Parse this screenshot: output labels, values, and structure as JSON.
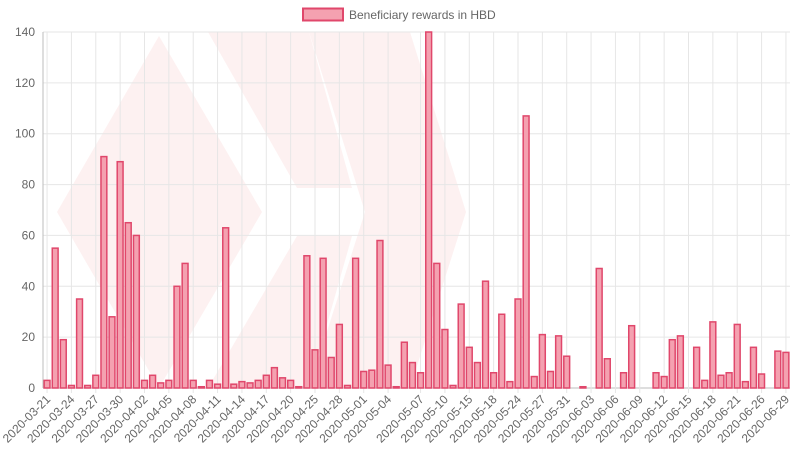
{
  "chart_data": {
    "type": "bar",
    "legend": {
      "label": "Beneficiary rewards in HBD",
      "position": "top"
    },
    "colors": {
      "bar_fill": "#f4a1b0",
      "bar_stroke": "#e0476b",
      "grid": "#e6e6e6",
      "axis": "#bdbdbd",
      "watermark": "#fdeeee"
    },
    "ylim": [
      0,
      140
    ],
    "yticks": [
      0,
      20,
      40,
      60,
      80,
      100,
      120,
      140
    ],
    "x_tick_labels": [
      "2020-03-21",
      "2020-03-24",
      "2020-03-27",
      "2020-03-30",
      "2020-04-02",
      "2020-04-05",
      "2020-04-08",
      "2020-04-11",
      "2020-04-14",
      "2020-04-17",
      "2020-04-20",
      "2020-04-25",
      "2020-04-28",
      "2020-05-01",
      "2020-05-04",
      "2020-05-07",
      "2020-05-10",
      "2020-05-15",
      "2020-05-18",
      "2020-05-24",
      "2020-05-27",
      "2020-05-31",
      "2020-06-03",
      "2020-06-06",
      "2020-06-09",
      "2020-06-12",
      "2020-06-15",
      "2020-06-18",
      "2020-06-21",
      "2020-06-26",
      "2020-06-29"
    ],
    "values": [
      3,
      55,
      19,
      1,
      35,
      1,
      5,
      91,
      28,
      89,
      65,
      60,
      3,
      5,
      2,
      3,
      40,
      49,
      3,
      0.5,
      3,
      1.5,
      63,
      1.5,
      2.5,
      2,
      3,
      5,
      8,
      4,
      3,
      0.5,
      52,
      15,
      51,
      12,
      25,
      1,
      51,
      6.5,
      7,
      58,
      9,
      0.5,
      18,
      10,
      6,
      140,
      49,
      23,
      1,
      33,
      16,
      10,
      42,
      6,
      29,
      2.5,
      35,
      107,
      4.5,
      21,
      6.5,
      20.5,
      12.5,
      0,
      0.5,
      0,
      47,
      11.5,
      0,
      6,
      24.5,
      0,
      0,
      6,
      4.5,
      19,
      20.5,
      0,
      16,
      3,
      26,
      5,
      6,
      25,
      2.5,
      16,
      5.5,
      0,
      14.5,
      14
    ]
  }
}
